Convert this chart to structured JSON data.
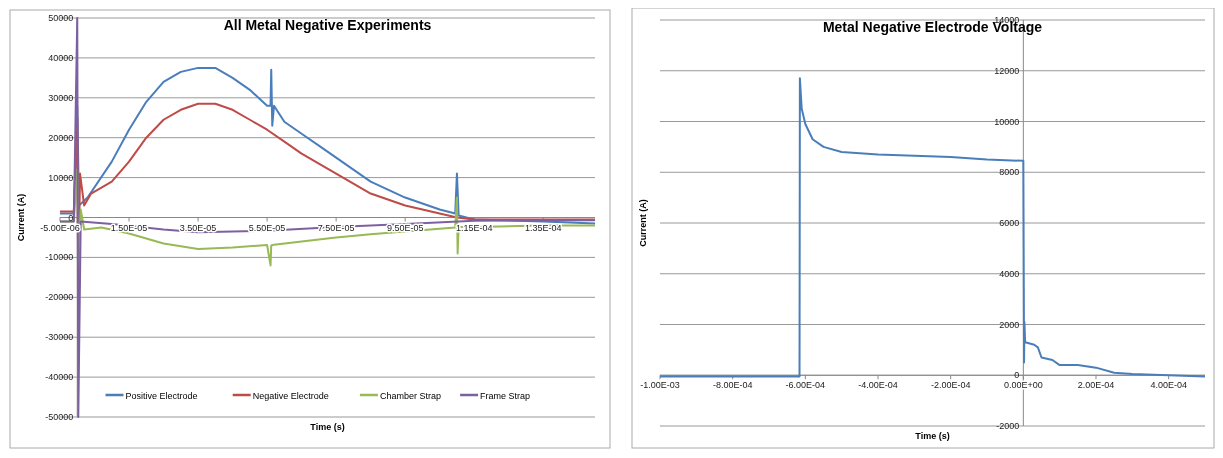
{
  "chart_data": [
    {
      "type": "line",
      "title": "All Metal Negative Experiments",
      "xlabel": "Time (s)",
      "ylabel": "Current (A)",
      "xlim": [
        -5e-06,
        0.00015
      ],
      "ylim": [
        -50000,
        50000
      ],
      "xticks": [
        {
          "value": -5e-06,
          "label": "-5.00E-06"
        },
        {
          "value": 1.5e-05,
          "label": "1.50E-05"
        },
        {
          "value": 3.5e-05,
          "label": "3.50E-05"
        },
        {
          "value": 5.5e-05,
          "label": "5.50E-05"
        },
        {
          "value": 7.5e-05,
          "label": "7.50E-05"
        },
        {
          "value": 9.5e-05,
          "label": "9.50E-05"
        },
        {
          "value": 0.000115,
          "label": "1.15E-04"
        },
        {
          "value": 0.000135,
          "label": "1.35E-04"
        }
      ],
      "yticks": [
        -50000,
        -40000,
        -30000,
        -20000,
        -10000,
        0,
        10000,
        20000,
        30000,
        40000,
        50000
      ],
      "grid": "y",
      "legend": "bottom",
      "series": [
        {
          "name": "Positive Electrode",
          "color": "#4a7ebb",
          "x": [
            -5e-06,
            -1e-06,
            0,
            5e-07,
            3e-06,
            1e-05,
            1.5e-05,
            2e-05,
            2.5e-05,
            3e-05,
            3.5e-05,
            4e-05,
            4.5e-05,
            5e-05,
            5.5e-05,
            5.6e-05,
            5.62e-05,
            5.65e-05,
            5.7e-05,
            6e-05,
            6.5e-05,
            7e-05,
            7.5e-05,
            8e-05,
            8.5e-05,
            9e-05,
            9.5e-05,
            0.0001,
            0.000105,
            0.0001095,
            0.00011,
            0.0001105,
            0.000115,
            0.000135,
            0.00015
          ],
          "values": [
            1000,
            1000,
            28000,
            3000,
            5000,
            14000,
            22000,
            29000,
            34000,
            36500,
            37500,
            37500,
            35000,
            32000,
            28000,
            28000,
            37000,
            23000,
            28000,
            24000,
            21000,
            18000,
            15000,
            12000,
            9000,
            7000,
            5000,
            3500,
            2000,
            1000,
            11000,
            500,
            -500,
            -1000,
            -1500
          ]
        },
        {
          "name": "Negative Electrode",
          "color": "#be4b48",
          "x": [
            -5e-06,
            -1e-06,
            0,
            3e-07,
            8e-07,
            2e-06,
            4e-06,
            1e-05,
            1.5e-05,
            2e-05,
            2.5e-05,
            3e-05,
            3.5e-05,
            4e-05,
            4.5e-05,
            5e-05,
            5.5e-05,
            6e-05,
            6.5e-05,
            7e-05,
            7.5e-05,
            8e-05,
            8.5e-05,
            9e-05,
            9.5e-05,
            0.0001,
            0.000105,
            0.00011,
            0.000115,
            0.00015
          ],
          "values": [
            1500,
            1500,
            25000,
            -18000,
            11000,
            3000,
            6000,
            9000,
            14000,
            20000,
            24500,
            27000,
            28500,
            28500,
            27000,
            24500,
            22000,
            19000,
            16000,
            13500,
            11000,
            8500,
            6000,
            4500,
            3000,
            2000,
            1000,
            0,
            -500,
            -500
          ]
        },
        {
          "name": "Chamber Strap",
          "color": "#98b954",
          "x": [
            -5e-06,
            -1e-06,
            0,
            3e-07,
            1e-06,
            2e-06,
            7e-06,
            1.5e-05,
            2.5e-05,
            3.5e-05,
            4.5e-05,
            5.5e-05,
            5.6e-05,
            5.62e-05,
            5.7e-05,
            6.5e-05,
            7.5e-05,
            8.5e-05,
            9.5e-05,
            0.000105,
            0.0001095,
            0.00011,
            0.0001102,
            0.0001105,
            0.000115,
            0.000135,
            0.00015
          ],
          "values": [
            -1000,
            -1000,
            12000,
            -12000,
            2000,
            -3000,
            -2500,
            -4000,
            -6500,
            -7900,
            -7500,
            -6900,
            -12000,
            -7000,
            -6800,
            -6000,
            -5000,
            -4200,
            -3500,
            -2800,
            -2500,
            5000,
            -9000,
            -2400,
            -2400,
            -2000,
            -2000
          ]
        },
        {
          "name": "Frame Strap",
          "color": "#7d60a0",
          "x": [
            -5e-06,
            -1e-06,
            0,
            3e-07,
            1e-06,
            1e-05,
            2.5e-05,
            3.5e-05,
            5.5e-05,
            7.5e-05,
            9.5e-05,
            0.000115,
            0.00015
          ],
          "values": [
            -1000,
            -1000,
            50000,
            -50000,
            -1000,
            -1600,
            -3000,
            -3700,
            -3300,
            -2400,
            -1600,
            -800,
            -700
          ]
        }
      ]
    },
    {
      "type": "line",
      "title": "Metal Negative Electrode Voltage",
      "xlabel": "Time (s)",
      "ylabel": "Current (A)",
      "xlim": [
        -0.001,
        0.0005
      ],
      "ylim": [
        -2000,
        14000
      ],
      "xticks": [
        {
          "value": -0.001,
          "label": "-1.00E-03"
        },
        {
          "value": -0.0008,
          "label": "-8.00E-04"
        },
        {
          "value": -0.0006,
          "label": "-6.00E-04"
        },
        {
          "value": -0.0004,
          "label": "-4.00E-04"
        },
        {
          "value": -0.0002,
          "label": "-2.00E-04"
        },
        {
          "value": 0,
          "label": "0.00E+00"
        },
        {
          "value": 0.0002,
          "label": "2.00E-04"
        },
        {
          "value": 0.0004,
          "label": "4.00E-04"
        }
      ],
      "yticks": [
        -2000,
        0,
        2000,
        4000,
        6000,
        8000,
        10000,
        12000,
        14000
      ],
      "grid": "y",
      "series": [
        {
          "color": "#4a7ebb",
          "x": [
            -0.001,
            -0.0008,
            -0.000616,
            -0.000615,
            -0.00061,
            -0.0006,
            -0.00058,
            -0.00055,
            -0.0005,
            -0.0004,
            -0.0003,
            -0.0002,
            -0.0001,
            0,
            2e-06,
            3e-06,
            5e-06,
            3e-05,
            4e-05,
            5e-05,
            8e-05,
            0.0001,
            0.00015,
            0.0002,
            0.00025,
            0.0003,
            0.0004,
            0.0005
          ],
          "values": [
            -50,
            -50,
            -50,
            11700,
            10500,
            9900,
            9300,
            9000,
            8800,
            8700,
            8650,
            8600,
            8500,
            8450,
            500,
            2100,
            1300,
            1200,
            1100,
            700,
            600,
            400,
            400,
            300,
            100,
            50,
            0,
            -50
          ]
        }
      ]
    }
  ]
}
